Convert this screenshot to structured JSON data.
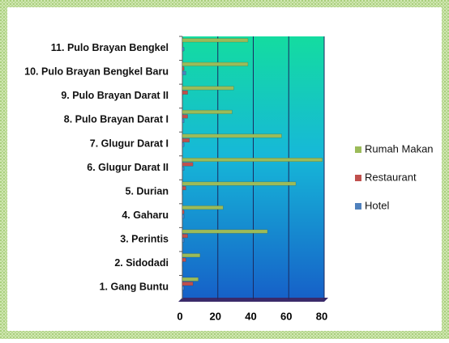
{
  "chart_data": {
    "type": "hbar",
    "categories": [
      "11. Pulo Brayan Bengkel",
      "10. Pulo Brayan Bengkel Baru",
      "9. Pulo Brayan Darat II",
      "8. Pulo Brayan Darat I",
      "7. Glugur Darat I",
      "6. Glugur Darat II",
      "5. Durian",
      "4. Gaharu",
      "3. Perintis",
      "2. Sidodadi",
      "1. Gang Buntu"
    ],
    "series": [
      {
        "name": "Rumah Makan",
        "color": "#9bbb59",
        "values": [
          37,
          37,
          29,
          28,
          56,
          79,
          64,
          23,
          48,
          10,
          9
        ]
      },
      {
        "name": "Restaurant",
        "color": "#c0504d",
        "values": [
          0,
          1,
          3,
          3,
          4,
          6,
          2,
          1,
          3,
          2,
          6
        ]
      },
      {
        "name": "Hotel",
        "color": "#4f81bd",
        "values": [
          1,
          2,
          0,
          1,
          1,
          1,
          0,
          1,
          1,
          0,
          1
        ]
      }
    ],
    "xlim": [
      0,
      80
    ],
    "xticks": [
      0,
      20,
      40,
      60,
      80
    ],
    "grid": true,
    "legend": "right"
  }
}
